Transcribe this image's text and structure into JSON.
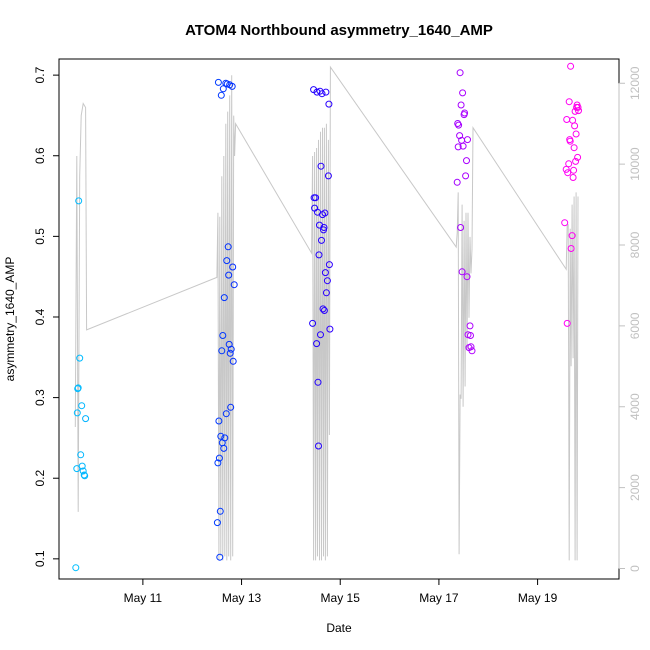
{
  "chart_data": {
    "type": "scatter",
    "title": "ATOM4 Northbound asymmetry_1640_AMP",
    "xlabel": "Date",
    "ylabel": "asymmetry_1640_AMP",
    "x_unit": "days since May 1",
    "xlim": [
      9.3,
      20.65
    ],
    "ylim": [
      0.075,
      0.72
    ],
    "y2lim": [
      -260,
      12600
    ],
    "x_ticks": [
      {
        "value": 11,
        "label": "May 11"
      },
      {
        "value": 13,
        "label": "May 13"
      },
      {
        "value": 15,
        "label": "May 15"
      },
      {
        "value": 17,
        "label": "May 17"
      },
      {
        "value": 19,
        "label": "May 19"
      }
    ],
    "y_ticks": [
      {
        "value": 0.1,
        "label": "0.1"
      },
      {
        "value": 0.2,
        "label": "0.2"
      },
      {
        "value": 0.3,
        "label": "0.3"
      },
      {
        "value": 0.4,
        "label": "0.4"
      },
      {
        "value": 0.5,
        "label": "0.5"
      },
      {
        "value": 0.6,
        "label": "0.6"
      },
      {
        "value": 0.7,
        "label": "0.7"
      }
    ],
    "y2_ticks": [
      {
        "value": 0,
        "label": "0"
      },
      {
        "value": 2000,
        "label": "2000"
      },
      {
        "value": 4000,
        "label": "4000"
      },
      {
        "value": 6000,
        "label": "6000"
      },
      {
        "value": 8000,
        "label": "8000"
      },
      {
        "value": 10000,
        "label": "10000"
      },
      {
        "value": 12000,
        "label": "12000"
      }
    ],
    "series": [
      {
        "name": "asymmetry_1640_AMP",
        "axis": "left",
        "points": [
          [
            9.64,
            0.089
          ],
          [
            9.66,
            0.212
          ],
          [
            9.67,
            0.281
          ],
          [
            9.68,
            0.311
          ],
          [
            9.69,
            0.312
          ],
          [
            9.7,
            0.544
          ],
          [
            9.72,
            0.349
          ],
          [
            9.74,
            0.229
          ],
          [
            9.76,
            0.29
          ],
          [
            9.77,
            0.215
          ],
          [
            9.79,
            0.209
          ],
          [
            9.81,
            0.204
          ],
          [
            9.82,
            0.203
          ],
          [
            9.84,
            0.274
          ],
          [
            12.51,
            0.145
          ],
          [
            12.52,
            0.219
          ],
          [
            12.53,
            0.691
          ],
          [
            12.54,
            0.271
          ],
          [
            12.55,
            0.225
          ],
          [
            12.56,
            0.102
          ],
          [
            12.57,
            0.159
          ],
          [
            12.58,
            0.252
          ],
          [
            12.59,
            0.675
          ],
          [
            12.6,
            0.358
          ],
          [
            12.61,
            0.244
          ],
          [
            12.62,
            0.377
          ],
          [
            12.63,
            0.683
          ],
          [
            12.64,
            0.237
          ],
          [
            12.65,
            0.424
          ],
          [
            12.66,
            0.25
          ],
          [
            12.68,
            0.69
          ],
          [
            12.69,
            0.28
          ],
          [
            12.7,
            0.47
          ],
          [
            12.71,
            0.689
          ],
          [
            12.73,
            0.487
          ],
          [
            12.74,
            0.452
          ],
          [
            12.75,
            0.366
          ],
          [
            12.76,
            0.688
          ],
          [
            12.77,
            0.355
          ],
          [
            12.78,
            0.288
          ],
          [
            12.79,
            0.36
          ],
          [
            12.81,
            0.686
          ],
          [
            12.82,
            0.462
          ],
          [
            12.83,
            0.345
          ],
          [
            12.85,
            0.44
          ],
          [
            14.44,
            0.392
          ],
          [
            14.46,
            0.682
          ],
          [
            14.47,
            0.548
          ],
          [
            14.48,
            0.535
          ],
          [
            14.5,
            0.548
          ],
          [
            14.52,
            0.367
          ],
          [
            14.53,
            0.679
          ],
          [
            14.54,
            0.53
          ],
          [
            14.55,
            0.319
          ],
          [
            14.56,
            0.24
          ],
          [
            14.57,
            0.477
          ],
          [
            14.58,
            0.514
          ],
          [
            14.59,
            0.68
          ],
          [
            14.6,
            0.378
          ],
          [
            14.61,
            0.587
          ],
          [
            14.62,
            0.495
          ],
          [
            14.63,
            0.677
          ],
          [
            14.64,
            0.527
          ],
          [
            14.65,
            0.41
          ],
          [
            14.66,
            0.508
          ],
          [
            14.67,
            0.511
          ],
          [
            14.68,
            0.408
          ],
          [
            14.69,
            0.529
          ],
          [
            14.7,
            0.455
          ],
          [
            14.71,
            0.679
          ],
          [
            14.72,
            0.43
          ],
          [
            14.74,
            0.445
          ],
          [
            14.76,
            0.575
          ],
          [
            14.77,
            0.664
          ],
          [
            14.78,
            0.465
          ],
          [
            14.79,
            0.385
          ],
          [
            17.37,
            0.567
          ],
          [
            17.38,
            0.64
          ],
          [
            17.39,
            0.611
          ],
          [
            17.4,
            0.638
          ],
          [
            17.42,
            0.625
          ],
          [
            17.43,
            0.703
          ],
          [
            17.44,
            0.511
          ],
          [
            17.45,
            0.663
          ],
          [
            17.46,
            0.619
          ],
          [
            17.47,
            0.456
          ],
          [
            17.48,
            0.678
          ],
          [
            17.49,
            0.612
          ],
          [
            17.51,
            0.651
          ],
          [
            17.52,
            0.653
          ],
          [
            17.54,
            0.575
          ],
          [
            17.56,
            0.594
          ],
          [
            17.57,
            0.45
          ],
          [
            17.58,
            0.62
          ],
          [
            17.59,
            0.378
          ],
          [
            17.61,
            0.362
          ],
          [
            17.63,
            0.389
          ],
          [
            17.64,
            0.377
          ],
          [
            17.65,
            0.363
          ],
          [
            17.67,
            0.358
          ],
          [
            19.55,
            0.517
          ],
          [
            19.58,
            0.583
          ],
          [
            19.59,
            0.645
          ],
          [
            19.6,
            0.392
          ],
          [
            19.61,
            0.579
          ],
          [
            19.63,
            0.59
          ],
          [
            19.64,
            0.667
          ],
          [
            19.65,
            0.62
          ],
          [
            19.66,
            0.618
          ],
          [
            19.67,
            0.711
          ],
          [
            19.68,
            0.485
          ],
          [
            19.7,
            0.501
          ],
          [
            19.71,
            0.644
          ],
          [
            19.72,
            0.573
          ],
          [
            19.73,
            0.582
          ],
          [
            19.74,
            0.61
          ],
          [
            19.75,
            0.637
          ],
          [
            19.76,
            0.655
          ],
          [
            19.77,
            0.593
          ],
          [
            19.78,
            0.627
          ],
          [
            19.79,
            0.66
          ],
          [
            19.8,
            0.663
          ],
          [
            19.81,
            0.598
          ],
          [
            19.82,
            0.66
          ],
          [
            19.83,
            0.656
          ]
        ]
      },
      {
        "name": "secondary series (right axis)",
        "axis": "right",
        "line_color": "#c8c8c8",
        "points": [
          [
            9.63,
            3500
          ],
          [
            9.66,
            10200
          ],
          [
            9.69,
            1400
          ],
          [
            9.72,
            9700
          ],
          [
            9.75,
            11200
          ],
          [
            9.79,
            11500
          ],
          [
            9.84,
            11400
          ],
          [
            9.86,
            5900
          ],
          [
            12.5,
            7200
          ],
          [
            12.52,
            8800
          ],
          [
            12.54,
            200
          ],
          [
            12.56,
            8700
          ],
          [
            12.58,
            300
          ],
          [
            12.6,
            9700
          ],
          [
            12.62,
            200
          ],
          [
            12.64,
            10200
          ],
          [
            12.66,
            300
          ],
          [
            12.68,
            11000
          ],
          [
            12.7,
            200
          ],
          [
            12.72,
            11300
          ],
          [
            12.74,
            300
          ],
          [
            12.76,
            11700
          ],
          [
            12.78,
            200
          ],
          [
            12.8,
            12200
          ],
          [
            12.82,
            300
          ],
          [
            12.84,
            11200
          ],
          [
            12.86,
            10200
          ],
          [
            12.88,
            11000
          ],
          [
            14.42,
            7800
          ],
          [
            14.44,
            10200
          ],
          [
            14.46,
            200
          ],
          [
            14.48,
            10300
          ],
          [
            14.5,
            200
          ],
          [
            14.52,
            10400
          ],
          [
            14.54,
            300
          ],
          [
            14.56,
            10600
          ],
          [
            14.58,
            200
          ],
          [
            14.6,
            10800
          ],
          [
            14.62,
            200
          ],
          [
            14.64,
            10900
          ],
          [
            14.66,
            300
          ],
          [
            14.68,
            10900
          ],
          [
            14.7,
            200
          ],
          [
            14.72,
            11000
          ],
          [
            14.74,
            300
          ],
          [
            14.76,
            10600
          ],
          [
            14.78,
            3300
          ],
          [
            14.8,
            12400
          ],
          [
            17.35,
            7950
          ],
          [
            17.37,
            8300
          ],
          [
            17.39,
            9300
          ],
          [
            17.41,
            350
          ],
          [
            17.43,
            4300
          ],
          [
            17.45,
            4200
          ],
          [
            17.47,
            9000
          ],
          [
            17.49,
            4000
          ],
          [
            17.51,
            8600
          ],
          [
            17.53,
            4500
          ],
          [
            17.55,
            8800
          ],
          [
            17.57,
            5400
          ],
          [
            17.59,
            8800
          ],
          [
            17.61,
            6200
          ],
          [
            17.63,
            8200
          ],
          [
            17.65,
            7300
          ],
          [
            17.67,
            7900
          ],
          [
            17.69,
            10900
          ],
          [
            19.58,
            7400
          ],
          [
            19.6,
            8500
          ],
          [
            19.62,
            8500
          ],
          [
            19.64,
            200
          ],
          [
            19.66,
            8400
          ],
          [
            19.68,
            5000
          ],
          [
            19.7,
            9000
          ],
          [
            19.72,
            5200
          ],
          [
            19.74,
            9200
          ],
          [
            19.76,
            200
          ],
          [
            19.78,
            9300
          ],
          [
            19.8,
            200
          ],
          [
            19.82,
            9200
          ]
        ]
      }
    ]
  }
}
